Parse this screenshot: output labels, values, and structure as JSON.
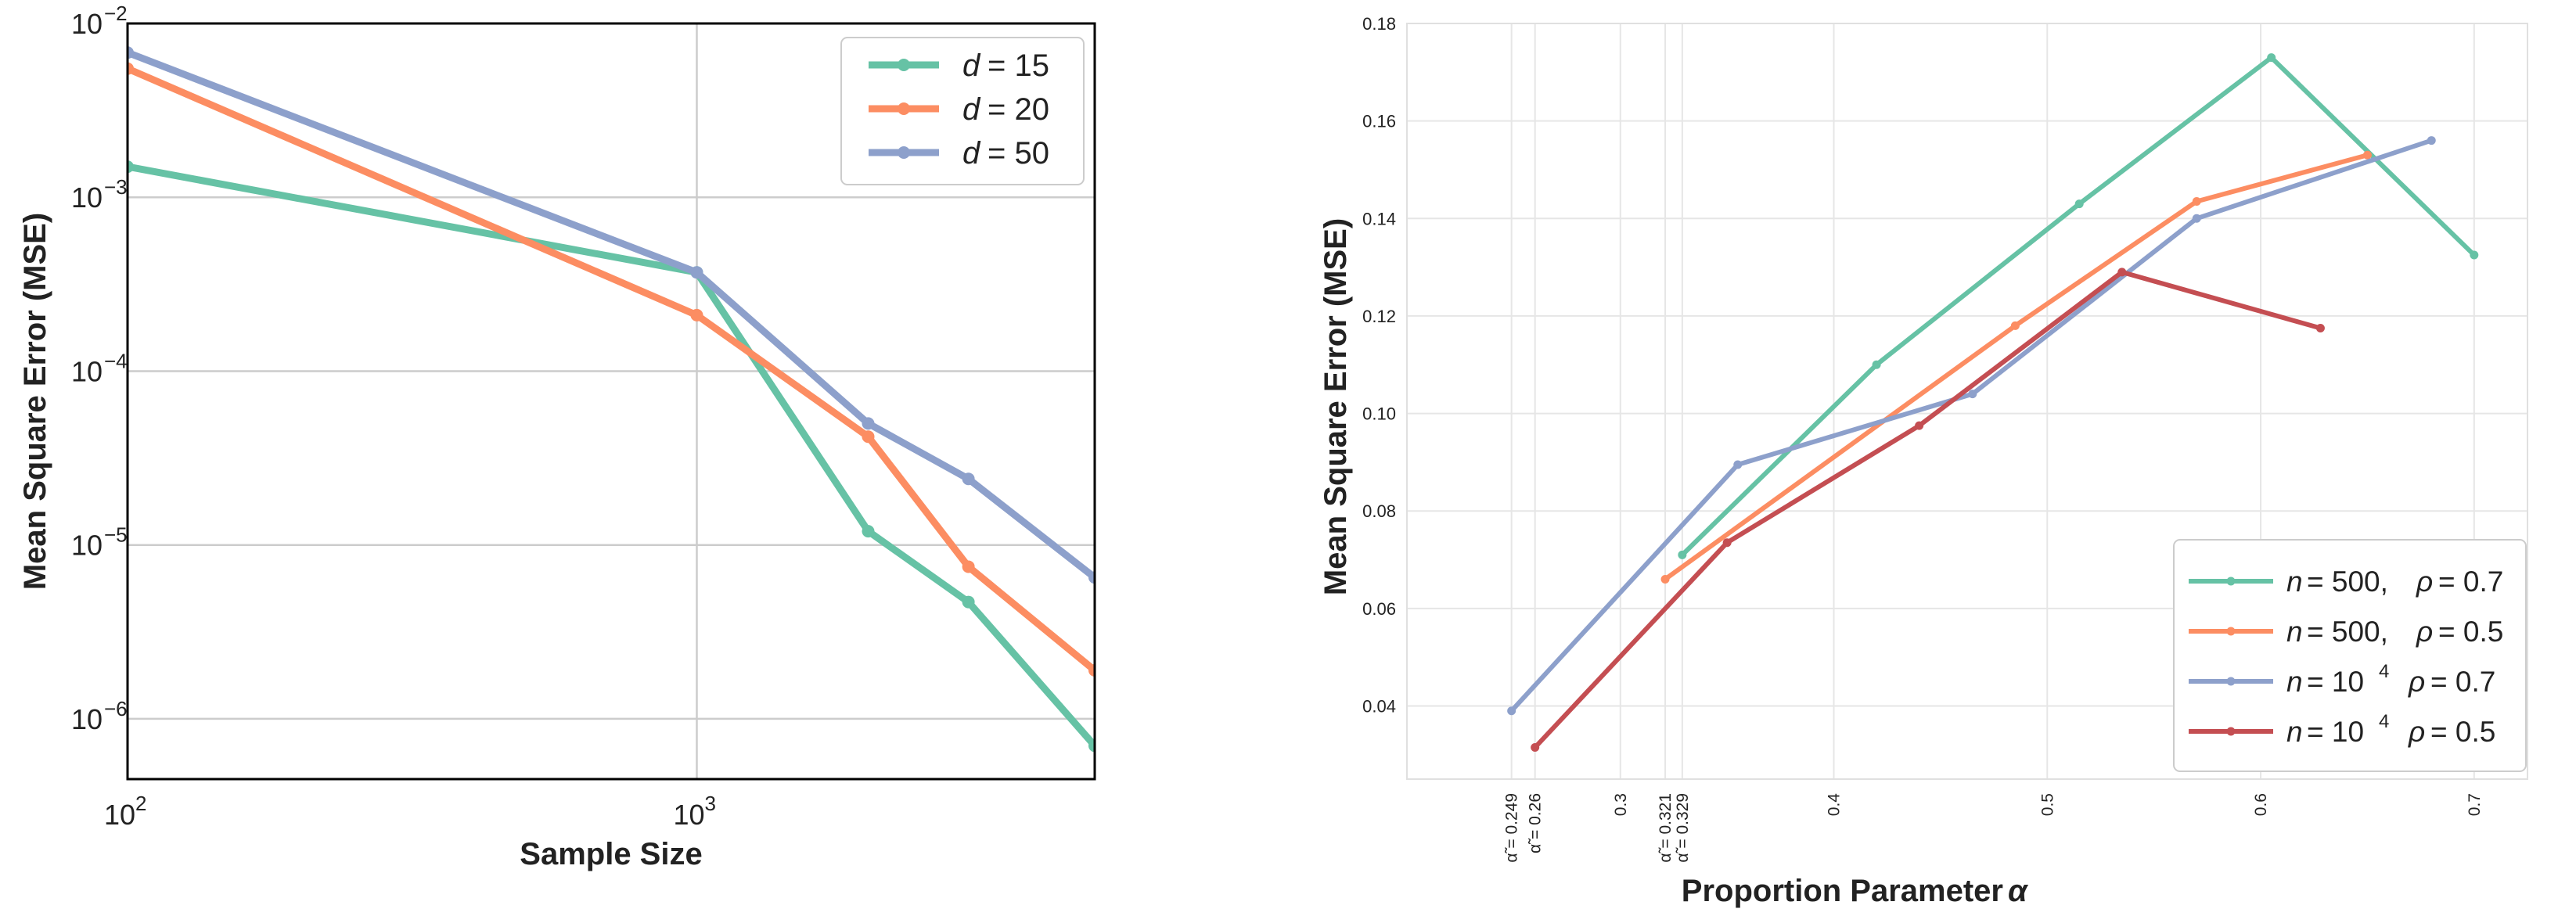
{
  "chart_data": [
    {
      "type": "line",
      "xscale": "log",
      "yscale": "log",
      "xlabel": "Sample Size",
      "ylabel": "Mean Square Error (MSE)",
      "xlim": [
        100,
        5000
      ],
      "ylim": [
        4.5e-07,
        0.01
      ],
      "grid": true,
      "legend_position": "top-right",
      "x_ticks": [
        {
          "value": 100,
          "base": "10",
          "exp": "2"
        },
        {
          "value": 1000,
          "base": "10",
          "exp": "3"
        }
      ],
      "y_ticks": [
        {
          "value": 1e-06,
          "base": "10",
          "exp": "−6"
        },
        {
          "value": 1e-05,
          "base": "10",
          "exp": "−5"
        },
        {
          "value": 0.0001,
          "base": "10",
          "exp": "−4"
        },
        {
          "value": 0.001,
          "base": "10",
          "exp": "−3"
        },
        {
          "value": 0.01,
          "base": "10",
          "exp": "−2"
        }
      ],
      "series": [
        {
          "name": "d = 15",
          "legend_var": "d",
          "legend_val": "= 15",
          "color": "#66c2a5",
          "x": [
            100,
            1000,
            2000,
            3000,
            5000
          ],
          "y": [
            0.0015,
            0.00037,
            1.2e-05,
            4.7e-06,
            7e-07
          ]
        },
        {
          "name": "d = 20",
          "legend_var": "d",
          "legend_val": "= 20",
          "color": "#fc8d62",
          "x": [
            100,
            1000,
            2000,
            3000,
            5000
          ],
          "y": [
            0.0055,
            0.00021,
            4.2e-05,
            7.5e-06,
            1.9e-06
          ]
        },
        {
          "name": "d = 50",
          "legend_var": "d",
          "legend_val": "= 50",
          "color": "#8da0cb",
          "x": [
            100,
            1000,
            2000,
            3000,
            5000
          ],
          "y": [
            0.0068,
            0.00037,
            5e-05,
            2.4e-05,
            6.5e-06
          ]
        }
      ]
    },
    {
      "type": "line",
      "xscale": "linear",
      "yscale": "linear",
      "xlabel": "Proportion Parameter",
      "xlabel_symbol": "α",
      "ylabel": "Mean Square Error (MSE)",
      "xlim": [
        0.2,
        0.725
      ],
      "ylim": [
        0.025,
        0.18
      ],
      "grid": true,
      "legend_position": "bottom-right",
      "x_ticks": [
        {
          "value": 0.249,
          "label": "α̃ = 0.249",
          "rotated": true
        },
        {
          "value": 0.26,
          "label": "α̃ = 0.26",
          "rotated": true
        },
        {
          "value": 0.3,
          "label": "0.3",
          "rotated": true
        },
        {
          "value": 0.321,
          "label": "α̃ = 0.321",
          "rotated": true
        },
        {
          "value": 0.329,
          "label": "α̃ = 0.329",
          "rotated": true
        },
        {
          "value": 0.4,
          "label": "0.4",
          "rotated": true
        },
        {
          "value": 0.5,
          "label": "0.5",
          "rotated": true
        },
        {
          "value": 0.6,
          "label": "0.6",
          "rotated": true
        },
        {
          "value": 0.7,
          "label": "0.7",
          "rotated": true
        }
      ],
      "y_ticks": [
        "0.04",
        "0.06",
        "0.08",
        "0.10",
        "0.12",
        "0.14",
        "0.16",
        "0.18"
      ],
      "y_tick_values": [
        0.04,
        0.06,
        0.08,
        0.1,
        0.12,
        0.14,
        0.16,
        0.18
      ],
      "series": [
        {
          "name": "n = 500, ρ = 0.7",
          "legend_n": "= 500,",
          "legend_sup": "",
          "legend_rho": "= 0.7",
          "color": "#66c2a5",
          "x": [
            0.329,
            0.42,
            0.515,
            0.605,
            0.7
          ],
          "y": [
            0.071,
            0.11,
            0.143,
            0.173,
            0.1325
          ]
        },
        {
          "name": "n = 500, ρ = 0.5",
          "legend_n": "= 500,",
          "legend_sup": "",
          "legend_rho": "= 0.5",
          "color": "#fc8d62",
          "x": [
            0.321,
            0.485,
            0.57,
            0.65
          ],
          "y": [
            0.066,
            0.118,
            0.1435,
            0.153
          ]
        },
        {
          "name": "n = 10^4, ρ = 0.7",
          "legend_n": "= 10",
          "legend_sup": "4",
          "legend_rho": "= 0.7",
          "color": "#8da0cb",
          "x": [
            0.249,
            0.355,
            0.465,
            0.57,
            0.68
          ],
          "y": [
            0.039,
            0.0895,
            0.104,
            0.14,
            0.156
          ]
        },
        {
          "name": "n = 10^4, ρ = 0.5",
          "legend_n": "= 10",
          "legend_sup": "4",
          "legend_rho": "= 0.5",
          "color": "#c44e52",
          "x": [
            0.26,
            0.35,
            0.44,
            0.535,
            0.628
          ],
          "y": [
            0.0315,
            0.0735,
            0.0975,
            0.129,
            0.1175
          ]
        }
      ]
    }
  ]
}
